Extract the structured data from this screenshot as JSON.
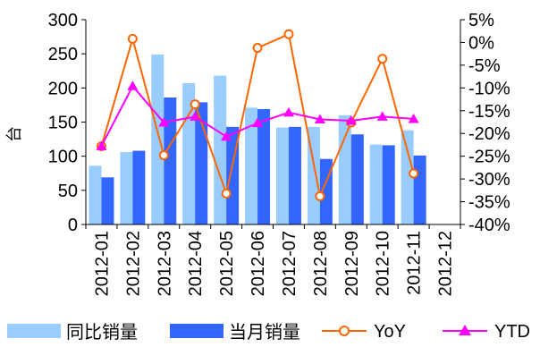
{
  "chart_data": {
    "type": "bar",
    "categories": [
      "2012-01",
      "2012-02",
      "2012-03",
      "2012-04",
      "2012-05",
      "2012-06",
      "2012-07",
      "2012-08",
      "2012-09",
      "2012-10",
      "2012-11",
      "2012-12"
    ],
    "series": [
      {
        "name": "同比销量",
        "type": "bar",
        "axis": "left",
        "color": "#99CCFF",
        "values": [
          86,
          106,
          249,
          207,
          218,
          171,
          142,
          143,
          160,
          117,
          138,
          null
        ]
      },
      {
        "name": "当月销量",
        "type": "bar",
        "axis": "left",
        "color": "#3366FF",
        "values": [
          69,
          108,
          186,
          179,
          143,
          169,
          143,
          96,
          132,
          116,
          101,
          null
        ]
      },
      {
        "name": "YoY",
        "type": "line",
        "axis": "right",
        "color": "#FF6600",
        "marker": "circle",
        "values": [
          -22.8,
          0.8,
          -24.8,
          -13.6,
          -33.2,
          -1.2,
          1.8,
          -33.8,
          -17.6,
          -3.6,
          -28.8,
          null
        ]
      },
      {
        "name": "YTD",
        "type": "line",
        "axis": "right",
        "color": "#FF00FF",
        "marker": "triangle",
        "values": [
          -22.8,
          -9.6,
          -17.6,
          -16.3,
          -20.7,
          -17.7,
          -15.4,
          -16.9,
          -17.2,
          -16.3,
          -16.8,
          null
        ]
      }
    ],
    "ylabel": "台",
    "ylim": [
      0,
      300
    ],
    "yticks": [
      "0",
      "50",
      "100",
      "150",
      "200",
      "250",
      "300"
    ],
    "y2lim": [
      -40,
      5
    ],
    "y2ticks": [
      "-40%",
      "-35%",
      "-30%",
      "-25%",
      "-20%",
      "-15%",
      "-10%",
      "-5%",
      "0%",
      "5%"
    ],
    "legend_position": "bottom",
    "grid": false
  }
}
